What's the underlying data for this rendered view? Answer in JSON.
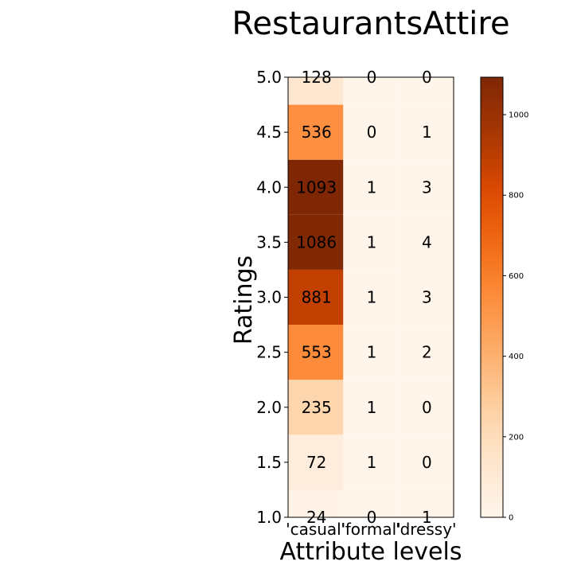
{
  "chart_data": {
    "type": "heatmap",
    "title": "RestaurantsAttire",
    "xlabel": "Attribute levels",
    "ylabel": "Ratings",
    "x_categories": [
      "'casual'",
      "'formal'",
      "'dressy'"
    ],
    "y_categories": [
      "1.0",
      "1.5",
      "2.0",
      "2.5",
      "3.0",
      "3.5",
      "4.0",
      "4.5",
      "5.0"
    ],
    "values": [
      [
        24,
        0,
        1
      ],
      [
        72,
        1,
        0
      ],
      [
        235,
        1,
        0
      ],
      [
        553,
        1,
        2
      ],
      [
        881,
        1,
        3
      ],
      [
        1086,
        1,
        4
      ],
      [
        1093,
        1,
        3
      ],
      [
        536,
        0,
        1
      ],
      [
        128,
        0,
        0
      ]
    ],
    "colormap": "Oranges",
    "colorbar": {
      "min": 0,
      "max": 1093,
      "ticks": [
        0,
        200,
        400,
        600,
        800,
        1000
      ]
    },
    "colors": {
      "low": "#fff5eb",
      "high": "#7f2704"
    }
  }
}
